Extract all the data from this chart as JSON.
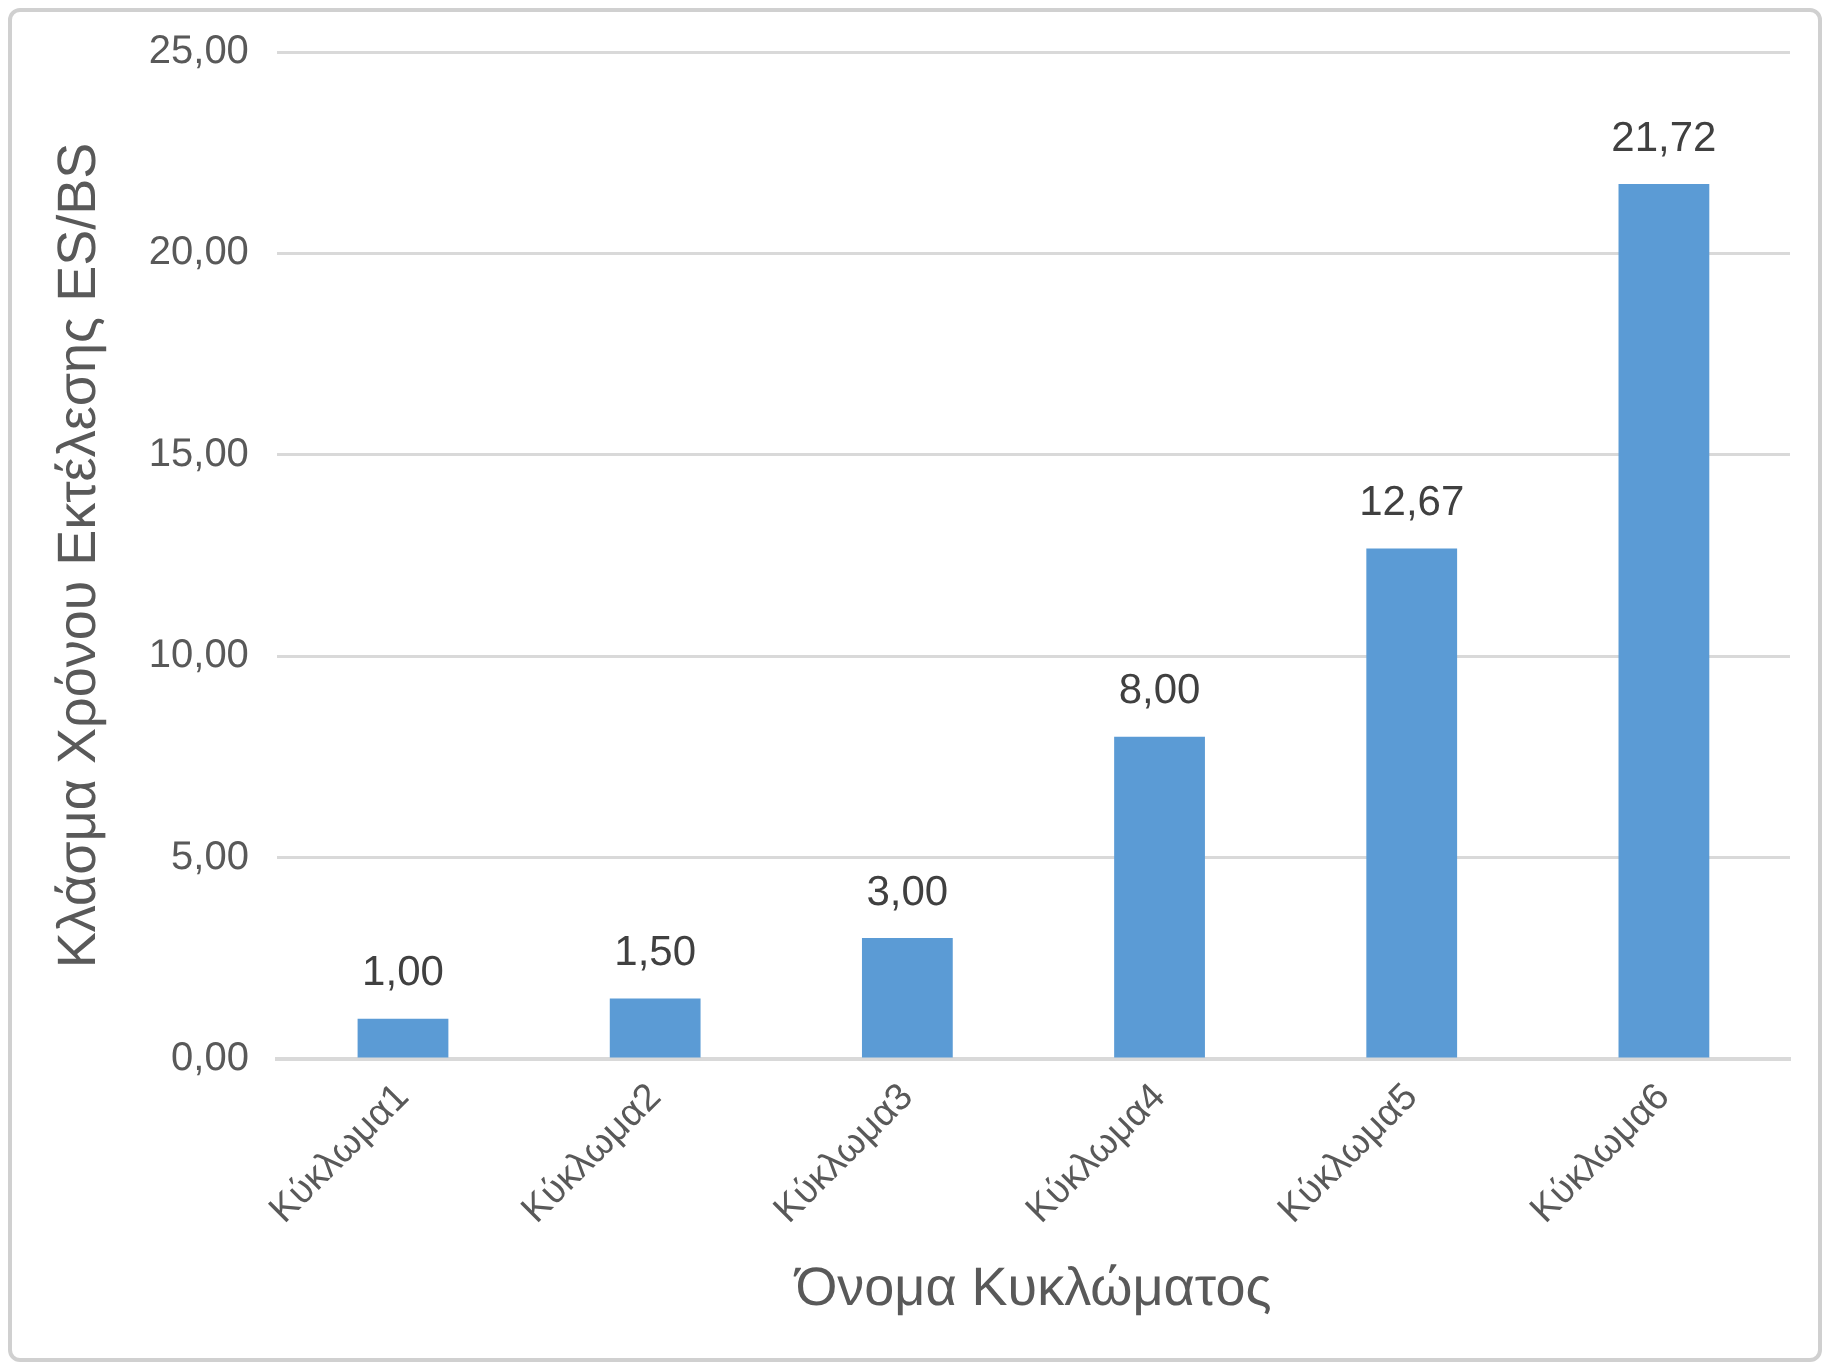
{
  "chart_data": {
    "type": "bar",
    "xlabel": "Όνομα Κυκλώματος",
    "ylabel": "Κλάσμα Χρόνου Εκτέλεσης ES/BS",
    "categories": [
      "Κύκλωμα1",
      "Κύκλωμα2",
      "Κύκλωμα3",
      "Κύκλωμα4",
      "Κύκλωμα5",
      "Κύκλωμα6"
    ],
    "values": [
      1,
      1.5,
      3,
      8,
      12.67,
      21.72
    ],
    "value_labels": [
      "1,00",
      "1,50",
      "3,00",
      "8,00",
      "12,67",
      "21,72"
    ],
    "color": "#5b9bd5",
    "ylim": [
      0,
      25
    ],
    "yticks": [
      {
        "value": 0,
        "label": "0,00"
      },
      {
        "value": 5,
        "label": "5,00"
      },
      {
        "value": 10,
        "label": "10,00"
      },
      {
        "value": 15,
        "label": "15,00"
      },
      {
        "value": 20,
        "label": "20,00"
      },
      {
        "value": 25,
        "label": "25,00"
      }
    ],
    "grid": "y",
    "legend": false
  }
}
